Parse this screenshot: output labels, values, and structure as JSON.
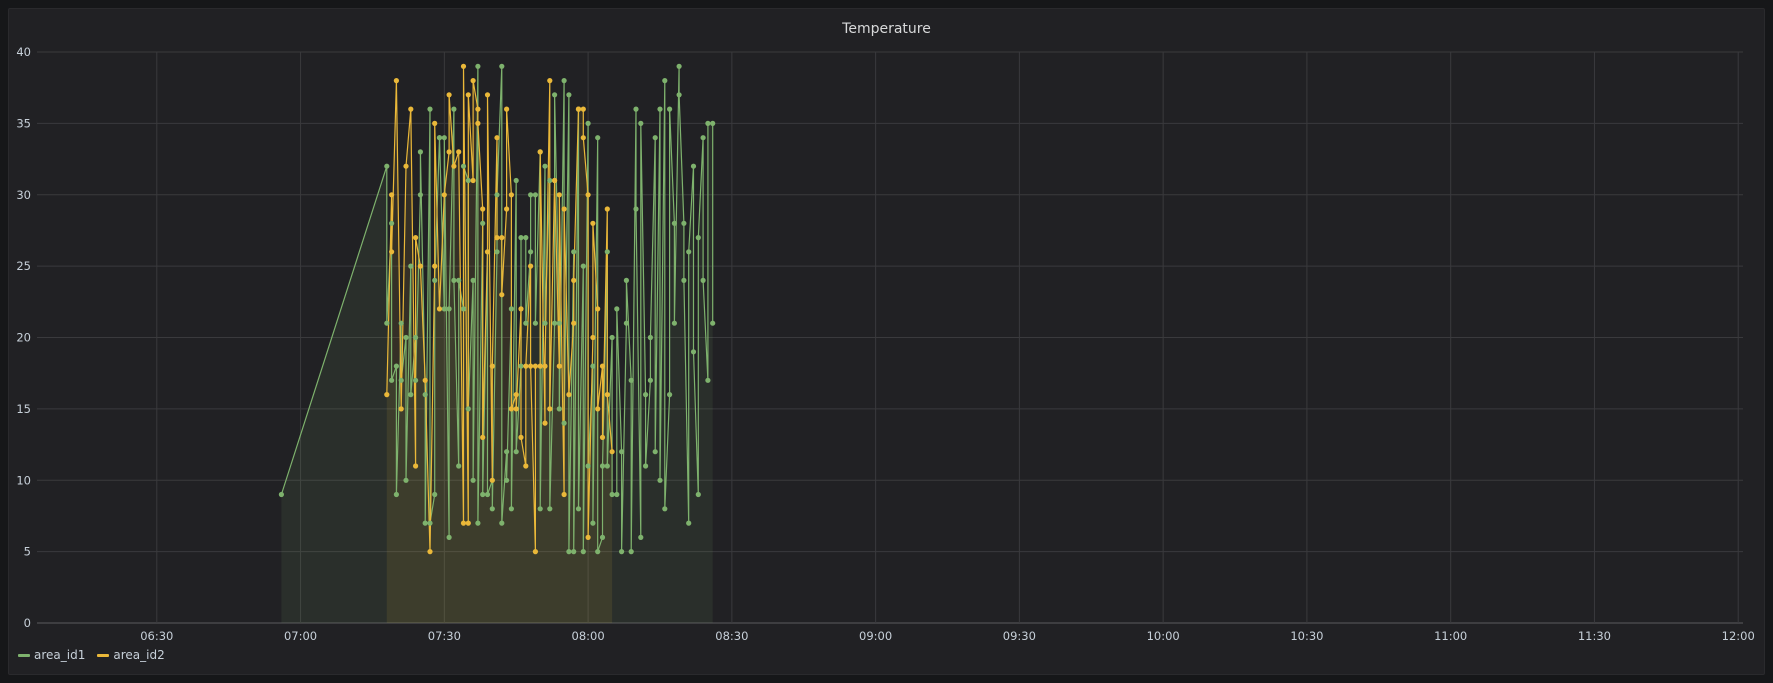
{
  "panel": {
    "title": "Temperature"
  },
  "chart_data": {
    "type": "line",
    "title": "Temperature",
    "x_axis": {
      "ticks": [
        "06:30",
        "07:00",
        "07:30",
        "08:00",
        "08:30",
        "09:00",
        "09:30",
        "10:00",
        "10:30",
        "11:00",
        "11:30",
        "12:00"
      ],
      "range": [
        "06:05",
        "12:01"
      ]
    },
    "y_axis": {
      "ticks": [
        0,
        5,
        10,
        15,
        20,
        25,
        30,
        35,
        40
      ],
      "ylim": [
        0,
        40
      ]
    },
    "grid": true,
    "fill": true,
    "legend_position": "bottom-left",
    "series": [
      {
        "name": "area_id1",
        "color": "#7eb26d",
        "points": [
          [
            "06:56",
            9
          ],
          [
            "07:18",
            32
          ],
          [
            "07:18",
            21
          ],
          [
            "07:19",
            28
          ],
          [
            "07:19",
            17
          ],
          [
            "07:20",
            18
          ],
          [
            "07:20",
            9
          ],
          [
            "07:21",
            21
          ],
          [
            "07:21",
            17
          ],
          [
            "07:22",
            20
          ],
          [
            "07:22",
            10
          ],
          [
            "07:23",
            25
          ],
          [
            "07:23",
            16
          ],
          [
            "07:24",
            20
          ],
          [
            "07:24",
            17
          ],
          [
            "07:25",
            30
          ],
          [
            "07:25",
            33
          ],
          [
            "07:26",
            16
          ],
          [
            "07:26",
            7
          ],
          [
            "07:27",
            36
          ],
          [
            "07:27",
            7
          ],
          [
            "07:28",
            9
          ],
          [
            "07:28",
            24
          ],
          [
            "07:29",
            34
          ],
          [
            "07:29",
            34
          ],
          [
            "07:30",
            22
          ],
          [
            "07:30",
            34
          ],
          [
            "07:31",
            6
          ],
          [
            "07:31",
            22
          ],
          [
            "07:32",
            36
          ],
          [
            "07:32",
            24
          ],
          [
            "07:33",
            11
          ],
          [
            "07:33",
            24
          ],
          [
            "07:34",
            22
          ],
          [
            "07:34",
            32
          ],
          [
            "07:35",
            31
          ],
          [
            "07:35",
            15
          ],
          [
            "07:36",
            24
          ],
          [
            "07:36",
            10
          ],
          [
            "07:37",
            39
          ],
          [
            "07:37",
            7
          ],
          [
            "07:38",
            28
          ],
          [
            "07:38",
            9
          ],
          [
            "07:39",
            26
          ],
          [
            "07:39",
            9
          ],
          [
            "07:40",
            10
          ],
          [
            "07:40",
            8
          ],
          [
            "07:41",
            26
          ],
          [
            "07:41",
            30
          ],
          [
            "07:42",
            39
          ],
          [
            "07:42",
            7
          ],
          [
            "07:43",
            12
          ],
          [
            "07:43",
            10
          ],
          [
            "07:44",
            22
          ],
          [
            "07:44",
            8
          ],
          [
            "07:45",
            31
          ],
          [
            "07:45",
            12
          ],
          [
            "07:46",
            18
          ],
          [
            "07:46",
            27
          ],
          [
            "07:47",
            27
          ],
          [
            "07:47",
            21
          ],
          [
            "07:48",
            26
          ],
          [
            "07:48",
            30
          ],
          [
            "07:49",
            30
          ],
          [
            "07:49",
            21
          ],
          [
            "07:50",
            33
          ],
          [
            "07:50",
            8
          ],
          [
            "07:51",
            32
          ],
          [
            "07:51",
            21
          ],
          [
            "07:52",
            31
          ],
          [
            "07:52",
            8
          ],
          [
            "07:53",
            21
          ],
          [
            "07:53",
            37
          ],
          [
            "07:54",
            21
          ],
          [
            "07:54",
            15
          ],
          [
            "07:55",
            38
          ],
          [
            "07:55",
            14
          ],
          [
            "07:56",
            37
          ],
          [
            "07:56",
            5
          ],
          [
            "07:57",
            26
          ],
          [
            "07:57",
            5
          ],
          [
            "07:58",
            36
          ],
          [
            "07:58",
            8
          ],
          [
            "07:59",
            25
          ],
          [
            "07:59",
            5
          ],
          [
            "08:00",
            35
          ],
          [
            "08:00",
            11
          ],
          [
            "08:01",
            18
          ],
          [
            "08:01",
            7
          ],
          [
            "08:02",
            34
          ],
          [
            "08:02",
            5
          ],
          [
            "08:03",
            6
          ],
          [
            "08:03",
            11
          ],
          [
            "08:04",
            26
          ],
          [
            "08:04",
            11
          ],
          [
            "08:05",
            20
          ],
          [
            "08:05",
            9
          ],
          [
            "08:06",
            9
          ],
          [
            "08:06",
            22
          ],
          [
            "08:07",
            12
          ],
          [
            "08:07",
            5
          ],
          [
            "08:08",
            21
          ],
          [
            "08:08",
            24
          ],
          [
            "08:09",
            17
          ],
          [
            "08:09",
            5
          ],
          [
            "08:10",
            36
          ],
          [
            "08:10",
            29
          ],
          [
            "08:11",
            6
          ],
          [
            "08:11",
            35
          ],
          [
            "08:12",
            16
          ],
          [
            "08:12",
            11
          ],
          [
            "08:13",
            17
          ],
          [
            "08:13",
            20
          ],
          [
            "08:14",
            34
          ],
          [
            "08:14",
            12
          ],
          [
            "08:15",
            36
          ],
          [
            "08:15",
            10
          ],
          [
            "08:16",
            38
          ],
          [
            "08:16",
            8
          ],
          [
            "08:17",
            16
          ],
          [
            "08:17",
            36
          ],
          [
            "08:18",
            28
          ],
          [
            "08:18",
            21
          ],
          [
            "08:19",
            39
          ],
          [
            "08:19",
            37
          ],
          [
            "08:20",
            28
          ],
          [
            "08:20",
            24
          ],
          [
            "08:21",
            7
          ],
          [
            "08:21",
            26
          ],
          [
            "08:22",
            32
          ],
          [
            "08:22",
            19
          ],
          [
            "08:23",
            9
          ],
          [
            "08:23",
            27
          ],
          [
            "08:24",
            34
          ],
          [
            "08:24",
            24
          ],
          [
            "08:25",
            17
          ],
          [
            "08:25",
            35
          ],
          [
            "08:26",
            35
          ],
          [
            "08:26",
            21
          ]
        ]
      },
      {
        "name": "area_id2",
        "color": "#eab839",
        "points": [
          [
            "07:18",
            16
          ],
          [
            "07:19",
            30
          ],
          [
            "07:19",
            26
          ],
          [
            "07:20",
            38
          ],
          [
            "07:21",
            15
          ],
          [
            "07:22",
            32
          ],
          [
            "07:23",
            36
          ],
          [
            "07:24",
            11
          ],
          [
            "07:24",
            27
          ],
          [
            "07:25",
            25
          ],
          [
            "07:26",
            17
          ],
          [
            "07:27",
            5
          ],
          [
            "07:28",
            25
          ],
          [
            "07:28",
            35
          ],
          [
            "07:29",
            22
          ],
          [
            "07:30",
            30
          ],
          [
            "07:31",
            33
          ],
          [
            "07:31",
            37
          ],
          [
            "07:32",
            32
          ],
          [
            "07:33",
            33
          ],
          [
            "07:34",
            7
          ],
          [
            "07:34",
            39
          ],
          [
            "07:35",
            7
          ],
          [
            "07:35",
            37
          ],
          [
            "07:36",
            31
          ],
          [
            "07:36",
            38
          ],
          [
            "07:37",
            36
          ],
          [
            "07:37",
            35
          ],
          [
            "07:38",
            29
          ],
          [
            "07:38",
            13
          ],
          [
            "07:39",
            26
          ],
          [
            "07:39",
            37
          ],
          [
            "07:40",
            10
          ],
          [
            "07:40",
            18
          ],
          [
            "07:41",
            34
          ],
          [
            "07:41",
            27
          ],
          [
            "07:42",
            27
          ],
          [
            "07:42",
            23
          ],
          [
            "07:43",
            29
          ],
          [
            "07:43",
            36
          ],
          [
            "07:44",
            30
          ],
          [
            "07:44",
            15
          ],
          [
            "07:45",
            16
          ],
          [
            "07:45",
            15
          ],
          [
            "07:46",
            22
          ],
          [
            "07:46",
            13
          ],
          [
            "07:47",
            11
          ],
          [
            "07:47",
            18
          ],
          [
            "07:48",
            25
          ],
          [
            "07:48",
            18
          ],
          [
            "07:49",
            5
          ],
          [
            "07:49",
            18
          ],
          [
            "07:50",
            18
          ],
          [
            "07:50",
            33
          ],
          [
            "07:51",
            14
          ],
          [
            "07:51",
            18
          ],
          [
            "07:52",
            38
          ],
          [
            "07:52",
            15
          ],
          [
            "07:53",
            31
          ],
          [
            "07:53",
            31
          ],
          [
            "07:54",
            18
          ],
          [
            "07:54",
            30
          ],
          [
            "07:55",
            9
          ],
          [
            "07:55",
            29
          ],
          [
            "07:56",
            16
          ],
          [
            "07:57",
            21
          ],
          [
            "07:57",
            24
          ],
          [
            "07:58",
            36
          ],
          [
            "07:58",
            36
          ],
          [
            "07:59",
            36
          ],
          [
            "07:59",
            34
          ],
          [
            "08:00",
            30
          ],
          [
            "08:00",
            6
          ],
          [
            "08:01",
            20
          ],
          [
            "08:01",
            28
          ],
          [
            "08:02",
            22
          ],
          [
            "08:02",
            15
          ],
          [
            "08:03",
            18
          ],
          [
            "08:03",
            13
          ],
          [
            "08:04",
            29
          ],
          [
            "08:04",
            16
          ],
          [
            "08:05",
            12
          ]
        ]
      }
    ]
  }
}
